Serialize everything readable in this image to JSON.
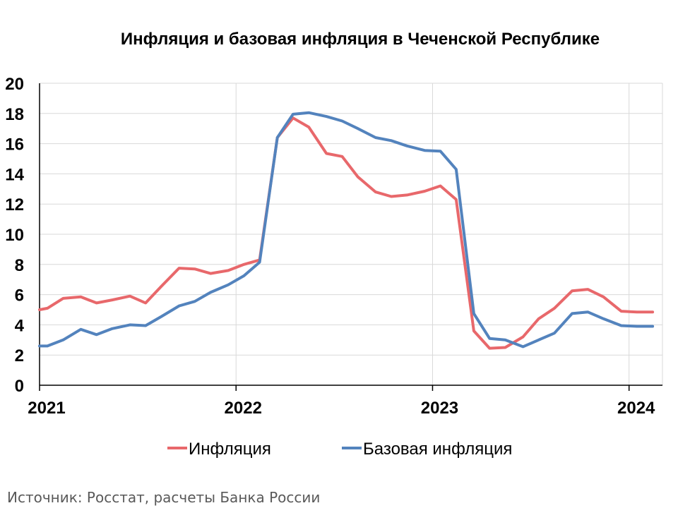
{
  "chart_data": {
    "type": "line",
    "title": "Инфляция и базовая инфляция в Чеченской Республике",
    "xlabel": "",
    "ylabel": "",
    "ylim": [
      0,
      20
    ],
    "y_ticks": [
      0,
      2,
      4,
      6,
      8,
      10,
      12,
      14,
      16,
      18,
      20
    ],
    "x_range": [
      2021.0,
      2024.17
    ],
    "x_tick_labels": [
      "2021",
      "2022",
      "2023",
      "2024"
    ],
    "x_tick_values": [
      2021,
      2022,
      2023,
      2024
    ],
    "grid": true,
    "legend_position": "bottom",
    "colors": {
      "inflation": "#e8686b",
      "core": "#5383bd",
      "grid": "#d9d9d9",
      "axis": "#000000"
    },
    "series": [
      {
        "name": "Инфляция",
        "color": "#e8686b",
        "x": [
          2021.0,
          2021.04,
          2021.12,
          2021.21,
          2021.29,
          2021.37,
          2021.46,
          2021.54,
          2021.62,
          2021.71,
          2021.79,
          2021.87,
          2021.96,
          2022.04,
          2022.12,
          2022.21,
          2022.29,
          2022.37,
          2022.46,
          2022.54,
          2022.62,
          2022.71,
          2022.79,
          2022.87,
          2022.96,
          2023.04,
          2023.12,
          2023.21,
          2023.29,
          2023.37,
          2023.46,
          2023.54,
          2023.62,
          2023.71,
          2023.79,
          2023.87,
          2023.96,
          2024.04,
          2024.12
        ],
        "values": [
          5.0,
          5.1,
          5.75,
          5.85,
          5.45,
          5.65,
          5.9,
          5.45,
          6.55,
          7.75,
          7.7,
          7.4,
          7.6,
          8.0,
          8.3,
          16.4,
          17.7,
          17.1,
          15.35,
          15.15,
          13.8,
          12.8,
          12.5,
          12.6,
          12.85,
          13.2,
          12.3,
          3.6,
          2.45,
          2.5,
          3.2,
          4.4,
          5.1,
          6.25,
          6.35,
          5.85,
          4.9,
          4.85,
          4.85
        ]
      },
      {
        "name": "Базовая инфляция",
        "color": "#5383bd",
        "x": [
          2021.0,
          2021.04,
          2021.12,
          2021.21,
          2021.29,
          2021.37,
          2021.46,
          2021.54,
          2021.62,
          2021.71,
          2021.79,
          2021.87,
          2021.96,
          2022.04,
          2022.12,
          2022.21,
          2022.29,
          2022.37,
          2022.46,
          2022.54,
          2022.62,
          2022.71,
          2022.79,
          2022.87,
          2022.96,
          2023.04,
          2023.12,
          2023.21,
          2023.29,
          2023.37,
          2023.46,
          2023.54,
          2023.62,
          2023.71,
          2023.79,
          2023.87,
          2023.96,
          2024.04,
          2024.12
        ],
        "values": [
          2.6,
          2.6,
          3.0,
          3.7,
          3.35,
          3.75,
          4.0,
          3.95,
          4.55,
          5.25,
          5.55,
          6.15,
          6.65,
          7.25,
          8.15,
          16.4,
          17.95,
          18.05,
          17.8,
          17.5,
          17.0,
          16.4,
          16.2,
          15.85,
          15.55,
          15.5,
          14.3,
          4.75,
          3.1,
          3.0,
          2.55,
          3.0,
          3.45,
          4.75,
          4.85,
          4.4,
          3.95,
          3.9,
          3.9
        ]
      }
    ]
  },
  "legend": {
    "inflation_label": "Инфляция",
    "core_label": "Базовая инфляция"
  },
  "source": "Источник: Росстат, расчеты Банка России"
}
